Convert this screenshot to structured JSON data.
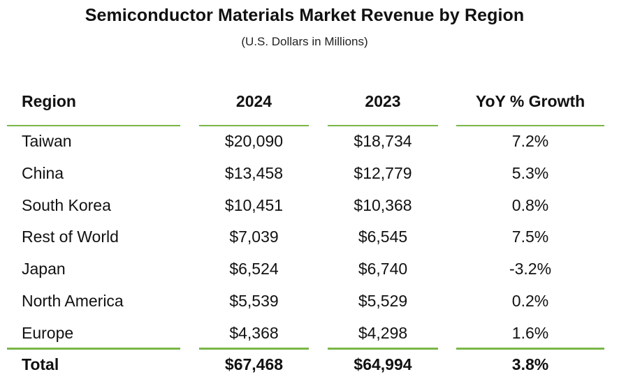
{
  "chart_data": {
    "type": "table",
    "title": "Semiconductor Materials Market Revenue by Region",
    "subtitle": "(U.S. Dollars in Millions)",
    "columns": [
      "Region",
      "2024",
      "2023",
      "YoY % Growth"
    ],
    "rows": [
      [
        "Taiwan",
        "$20,090",
        "$18,734",
        "7.2%"
      ],
      [
        "China",
        "$13,458",
        "$12,779",
        "5.3%"
      ],
      [
        "South Korea",
        "$10,451",
        "$10,368",
        "0.8%"
      ],
      [
        "Rest of World",
        "$7,039",
        "$6,545",
        "7.5%"
      ],
      [
        "Japan",
        "$6,524",
        "$6,740",
        "-3.2%"
      ],
      [
        "North America",
        "$5,539",
        "$5,529",
        "0.2%"
      ],
      [
        "Europe",
        "$4,368",
        "$4,298",
        "1.6%"
      ]
    ],
    "total": [
      "Total",
      "$67,468",
      "$64,994",
      "3.8%"
    ],
    "rule_color": "#7ab648"
  }
}
